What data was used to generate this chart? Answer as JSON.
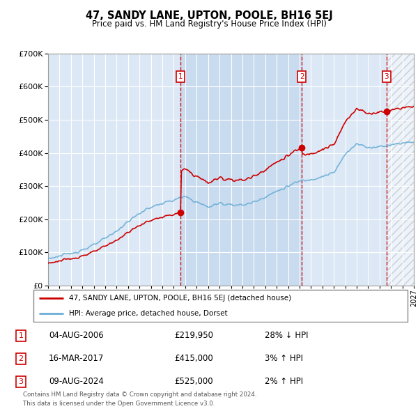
{
  "title": "47, SANDY LANE, UPTON, POOLE, BH16 5EJ",
  "subtitle": "Price paid vs. HM Land Registry's House Price Index (HPI)",
  "legend_line1": "47, SANDY LANE, UPTON, POOLE, BH16 5EJ (detached house)",
  "legend_line2": "HPI: Average price, detached house, Dorset",
  "table": [
    {
      "num": "1",
      "date": "04-AUG-2006",
      "price": "£219,950",
      "change": "28% ↓ HPI"
    },
    {
      "num": "2",
      "date": "16-MAR-2017",
      "price": "£415,000",
      "change": "3% ↑ HPI"
    },
    {
      "num": "3",
      "date": "09-AUG-2024",
      "price": "£525,000",
      "change": "2% ↑ HPI"
    }
  ],
  "footnote1": "Contains HM Land Registry data © Crown copyright and database right 2024.",
  "footnote2": "This data is licensed under the Open Government Licence v3.0.",
  "sale_dates": [
    2006.6,
    2017.2,
    2024.6
  ],
  "sale_prices": [
    219950,
    415000,
    525000
  ],
  "hpi_color": "#6baed6",
  "price_color": "#cc0000",
  "background_color": "#ffffff",
  "chart_bg": "#dce8f5",
  "grid_color": "#ffffff",
  "xmin": 1995,
  "xmax": 2027,
  "ymin": 0,
  "ymax": 700000
}
